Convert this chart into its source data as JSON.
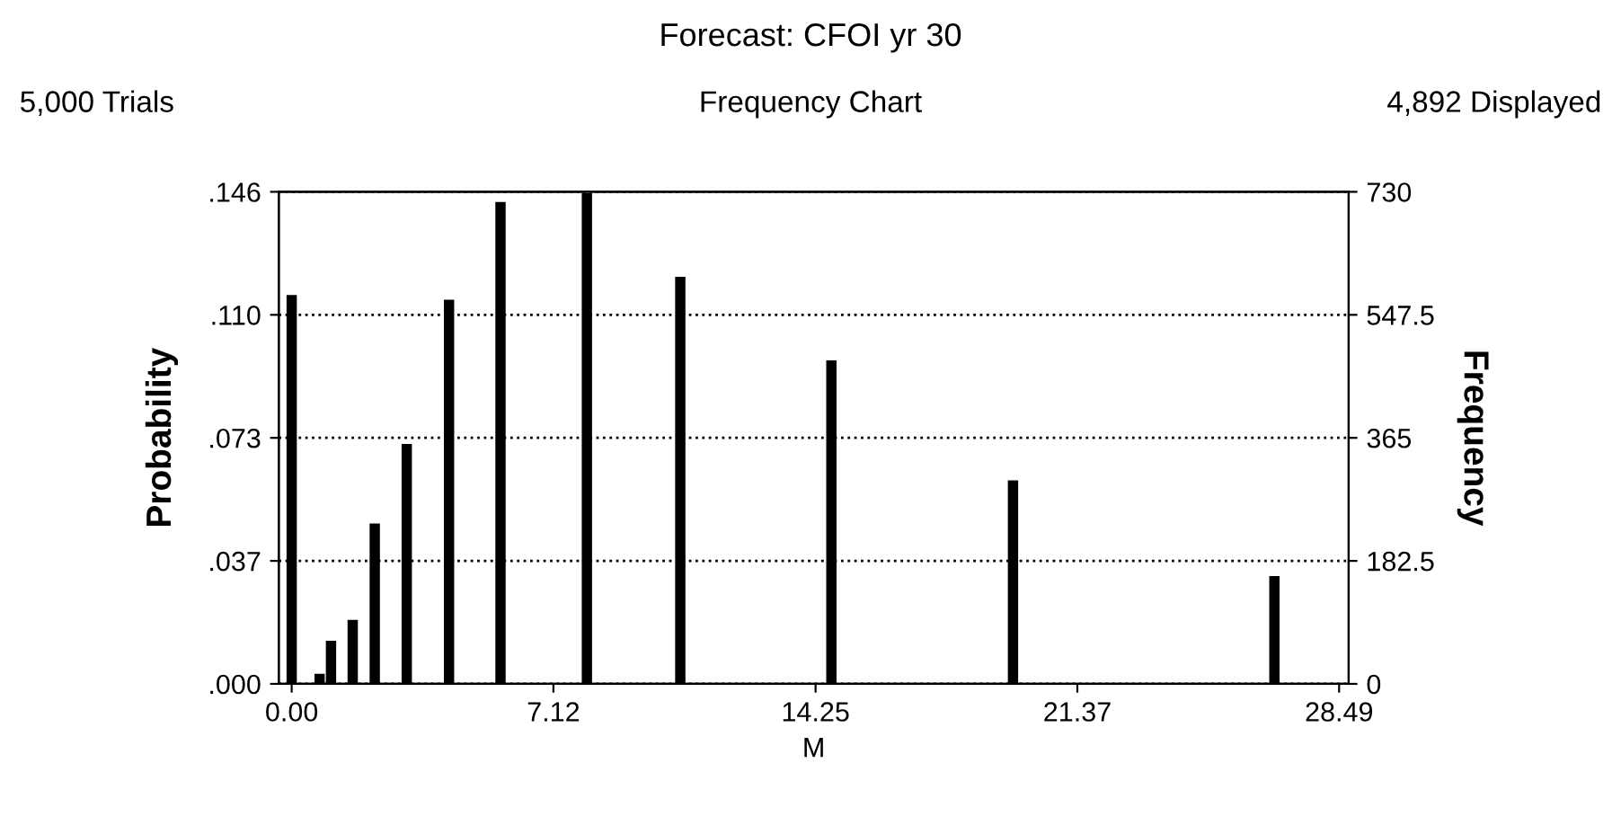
{
  "chart_data": {
    "type": "bar",
    "title": "Forecast: CFOI yr 30",
    "subtitle": "Frequency Chart",
    "annotations": [
      "5,000 Trials",
      "4,892 Displayed"
    ],
    "xlabel": "M",
    "ylabel": "Probability",
    "y2label": "Frequency",
    "x": [
      0.0,
      0.76,
      1.07,
      1.66,
      2.26,
      3.13,
      4.28,
      5.68,
      8.03,
      10.57,
      14.68,
      19.62,
      26.73
    ],
    "series": [
      {
        "color": "#000000",
        "axis": "y2",
        "values": [
          577,
          15,
          64,
          95,
          238,
          356,
          570,
          715,
          728,
          604,
          480,
          302,
          160
        ]
      }
    ],
    "xlim": [
      -0.35,
      28.75
    ],
    "xticks": [
      {
        "value": 0,
        "label": "0.00"
      },
      7.12,
      14.25,
      21.37,
      28.49
    ],
    "ylim": [
      0,
      0.146
    ],
    "yticks": [
      {
        "value": 0,
        "label": ".000"
      },
      {
        "value": 0.0365,
        "label": ".037"
      },
      {
        "value": 0.073,
        "label": ".073"
      },
      {
        "value": 0.1095,
        "label": ".110"
      },
      {
        "value": 0.146,
        "label": ".146"
      }
    ],
    "y2lim": [
      0,
      730
    ],
    "y2ticks": [
      0,
      182.5,
      365,
      547.5,
      730
    ],
    "grid": "y",
    "legend": false
  }
}
